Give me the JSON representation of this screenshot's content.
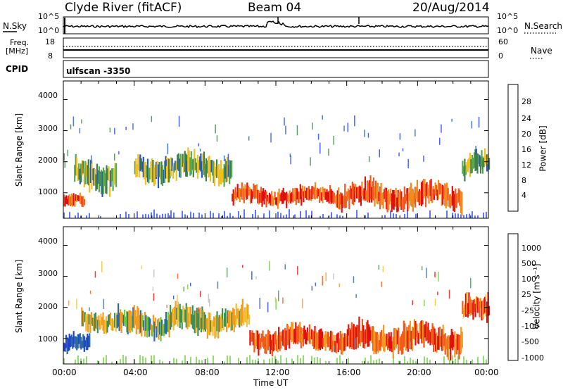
{
  "header": {
    "station": "Clyde River (fitACF)",
    "beam": "Beam 04",
    "date": "20/Aug/2014"
  },
  "strips": {
    "nsky_label": "N.Sky",
    "nsearch_label": "N.Search",
    "noise_ticks": [
      "10^5",
      "10^0"
    ],
    "freq_label_1": "Freq.",
    "freq_label_2": "[MHz]",
    "freq_ticks": [
      "18",
      "8"
    ],
    "nave_label": "Nave",
    "nave_ticks": [
      "60",
      "0"
    ],
    "cpid_label": "CPID",
    "cpid_value": "ulfscan -3350"
  },
  "colors": {
    "power_scale": [
      "#1a3cff",
      "#2457c0",
      "#3f7f49",
      "#57a84f",
      "#f0c020",
      "#f38a20",
      "#f05a20",
      "#e01010"
    ],
    "velocity_scale": [
      "#2244cc",
      "#2a6aa8",
      "#3f8f55",
      "#66cc33",
      "#bbbbbb",
      "#f0c030",
      "#f39a20",
      "#f05a1a",
      "#e01010"
    ]
  },
  "chart_data": [
    {
      "type": "heatmap",
      "panel": "power",
      "ylabel": "Slant Range [km]",
      "yticks": [
        "4000",
        "3000",
        "2000",
        "1000"
      ],
      "ylim": [
        180,
        4600
      ],
      "xticks": [
        "00:00",
        "04:00",
        "08:00",
        "12:00",
        "16:00",
        "20:00",
        "00:00"
      ],
      "xlim": [
        0,
        24
      ],
      "colorbar_label": "Power [dB]",
      "colorbar_ticks": [
        "28",
        "24",
        "20",
        "16",
        "12",
        "8",
        "4"
      ],
      "bands": [
        {
          "t0": 0.0,
          "t1": 1.2,
          "r_center": 700,
          "r_width": 250,
          "level": "high"
        },
        {
          "t0": 0.6,
          "t1": 3.0,
          "r_center": 1600,
          "r_width": 600,
          "level": "mid"
        },
        {
          "t0": 4.0,
          "t1": 9.5,
          "r_center": 1800,
          "r_width": 500,
          "level": "mid"
        },
        {
          "t0": 9.5,
          "t1": 15.5,
          "r_center": 900,
          "r_width": 350,
          "level": "high"
        },
        {
          "t0": 15.5,
          "t1": 22.5,
          "r_center": 900,
          "r_width": 500,
          "level": "high"
        },
        {
          "t0": 22.5,
          "t1": 24.0,
          "r_center": 1900,
          "r_width": 500,
          "level": "mid"
        }
      ]
    },
    {
      "type": "heatmap",
      "panel": "velocity",
      "ylabel": "Slant Range [km]",
      "yticks": [
        "4000",
        "3000",
        "2000",
        "1000"
      ],
      "ylim": [
        180,
        4600
      ],
      "xticks": [
        "00:00",
        "04:00",
        "08:00",
        "12:00",
        "16:00",
        "20:00",
        "00:00"
      ],
      "xlim": [
        0,
        24
      ],
      "xlabel": "Time UT",
      "colorbar_label": "Velocity [m s⁻¹]",
      "colorbar_ticks": [
        "1000",
        "500",
        "100",
        "25",
        "-25",
        "-100",
        "-500",
        "-1000"
      ],
      "bands": [
        {
          "t0": 0.0,
          "t1": 1.5,
          "r_center": 800,
          "r_width": 350,
          "level": "away"
        },
        {
          "t0": 1.0,
          "t1": 3.0,
          "r_center": 1600,
          "r_width": 400,
          "level": "toward"
        },
        {
          "t0": 3.0,
          "t1": 6.0,
          "r_center": 1500,
          "r_width": 500,
          "level": "mixed"
        },
        {
          "t0": 6.0,
          "t1": 10.5,
          "r_center": 1600,
          "r_width": 500,
          "level": "toward"
        },
        {
          "t0": 10.5,
          "t1": 16.0,
          "r_center": 1000,
          "r_width": 450,
          "level": "strong-toward"
        },
        {
          "t0": 16.0,
          "t1": 22.5,
          "r_center": 1000,
          "r_width": 550,
          "level": "strong-toward"
        },
        {
          "t0": 22.5,
          "t1": 24.0,
          "r_center": 1900,
          "r_width": 500,
          "level": "strong-toward"
        }
      ]
    }
  ]
}
